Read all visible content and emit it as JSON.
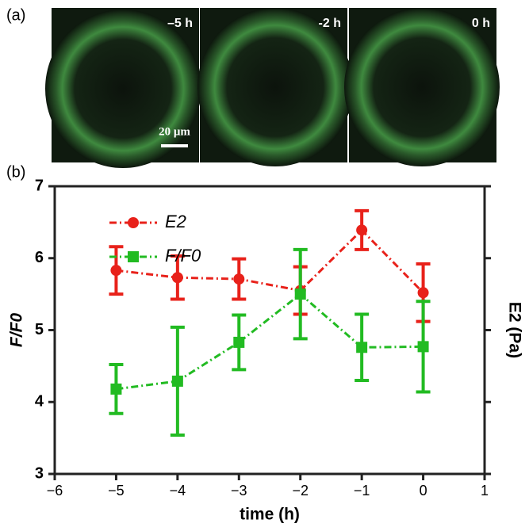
{
  "panel_labels": [
    "(a)",
    "(b)"
  ],
  "images": {
    "labels": [
      "–5 h",
      "-2 h",
      "0 h"
    ],
    "scale_bar": "20 μm"
  },
  "chart_data": {
    "type": "line",
    "x_label": "time (h)",
    "y_label": "F/F0",
    "y2_label": "E2 (Pa)",
    "x": [
      -5,
      -4,
      -3,
      -2,
      -1,
      0
    ],
    "series": [
      {
        "name": "E2",
        "color": "#e8211a",
        "marker": "circle",
        "values": [
          5.83,
          5.73,
          5.71,
          5.55,
          6.39,
          5.52
        ],
        "errors": [
          0.33,
          0.3,
          0.28,
          0.33,
          0.27,
          0.4
        ]
      },
      {
        "name": "F/F0",
        "color": "#22bb22",
        "marker": "square",
        "values": [
          4.18,
          4.29,
          4.83,
          5.5,
          4.76,
          4.77
        ],
        "errors": [
          0.34,
          0.75,
          0.38,
          0.62,
          0.46,
          0.63
        ]
      }
    ],
    "xlim": [
      -6,
      1
    ],
    "xticks": [
      {
        "value": -6,
        "label": "−6"
      },
      {
        "value": -5,
        "label": "−5"
      },
      {
        "value": -4,
        "label": "−4"
      },
      {
        "value": -3,
        "label": "−3"
      },
      {
        "value": -2,
        "label": "−2"
      },
      {
        "value": -1,
        "label": "−1"
      },
      0,
      1
    ],
    "ylim": [
      3,
      7
    ],
    "yticks": [
      3,
      4,
      5,
      6,
      7
    ]
  }
}
